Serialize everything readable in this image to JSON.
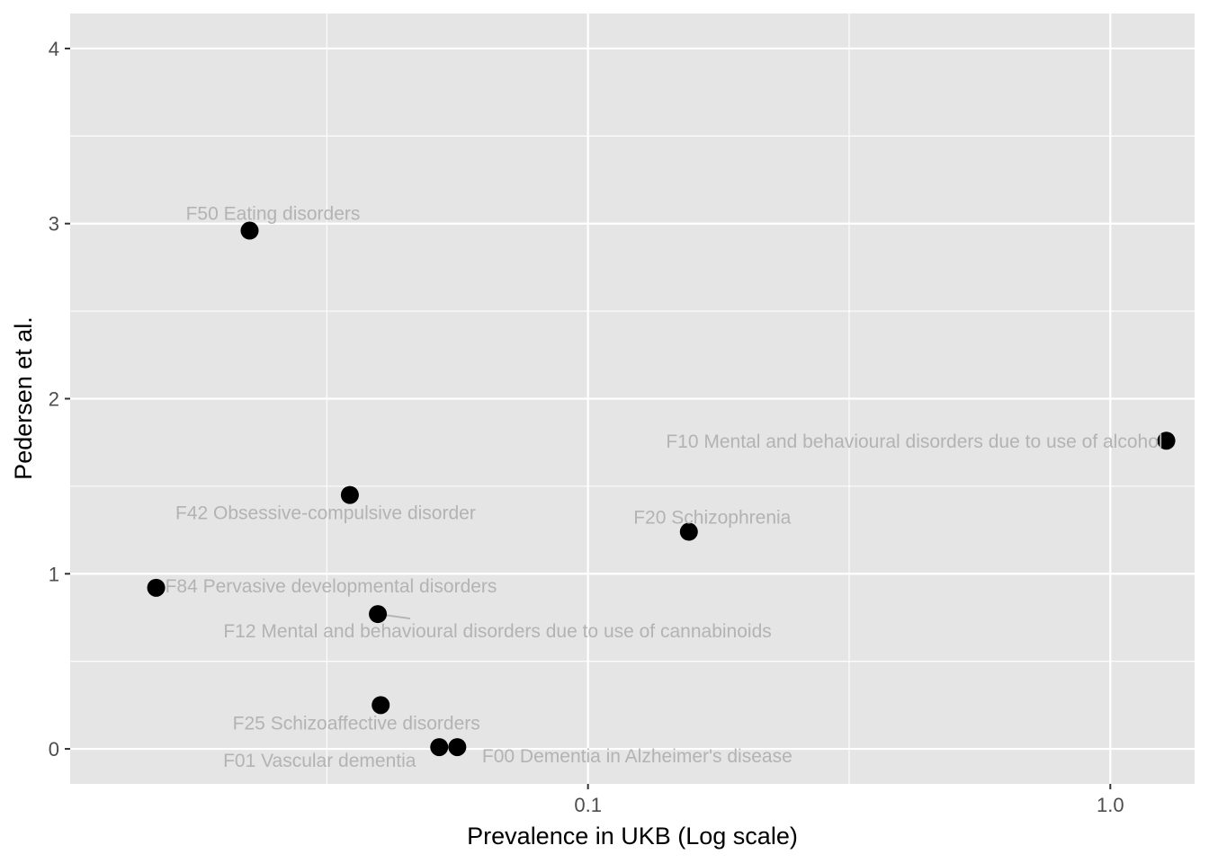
{
  "chart_data": {
    "type": "scatter",
    "title": "",
    "xlabel": "Prevalence in UKB (Log scale)",
    "ylabel": "Pedersen et al.",
    "x_scale": "log10",
    "xlim": [
      0.0102,
      1.45
    ],
    "ylim": [
      -0.2,
      4.2
    ],
    "x_ticks": [
      {
        "value": 0.1,
        "label": "0.1"
      },
      {
        "value": 1.0,
        "label": "1.0"
      }
    ],
    "y_ticks": [
      {
        "value": 0,
        "label": "0"
      },
      {
        "value": 1,
        "label": "1"
      },
      {
        "value": 2,
        "label": "2"
      },
      {
        "value": 3,
        "label": "3"
      },
      {
        "value": 4,
        "label": "4"
      }
    ],
    "grid": true,
    "colors": {
      "panel_background": "#e5e5e5",
      "grid": "#ffffff",
      "point": "#000000",
      "label": "#b3b3b3"
    },
    "points": [
      {
        "label": "F50 Eating disorders",
        "x": 0.0225,
        "y": 2.96
      },
      {
        "label": "F10 Mental and behavioural disorders due to use of alcohol",
        "x": 1.28,
        "y": 1.76
      },
      {
        "label": "F42 Obsessive-compulsive disorder",
        "x": 0.035,
        "y": 1.45
      },
      {
        "label": "F20 Schizophrenia",
        "x": 0.156,
        "y": 1.24
      },
      {
        "label": "F84 Pervasive developmental disorders",
        "x": 0.0149,
        "y": 0.92
      },
      {
        "label": "F12 Mental and behavioural disorders due to use of cannabinoids",
        "x": 0.0396,
        "y": 0.77
      },
      {
        "label": "F25 Schizoaffective disorders",
        "x": 0.0401,
        "y": 0.25
      },
      {
        "label": "F01 Vascular dementia",
        "x": 0.0519,
        "y": 0.01
      },
      {
        "label": "F00 Dementia in Alzheimer's disease",
        "x": 0.0562,
        "y": 0.01
      }
    ]
  }
}
